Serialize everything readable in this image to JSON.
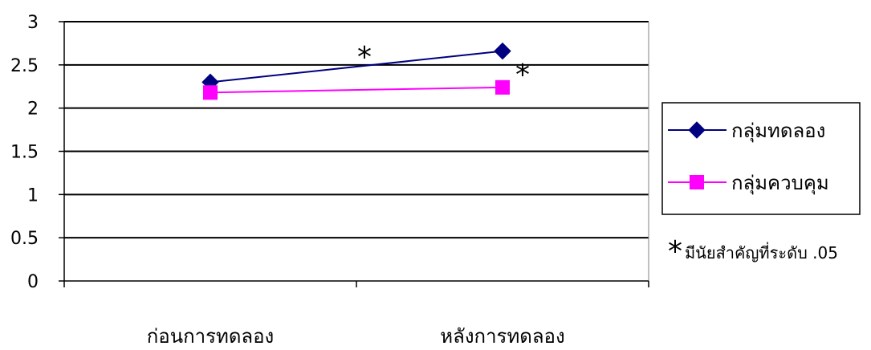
{
  "chart_data": {
    "type": "line",
    "categories": [
      "ก่อนการทดลอง",
      "หลังการทดลอง"
    ],
    "series": [
      {
        "name": "กลุ่มทดลอง",
        "values": [
          2.3,
          2.66
        ],
        "color": "#000080",
        "marker": "diamond"
      },
      {
        "name": "กลุ่มควบคุม",
        "values": [
          2.18,
          2.24
        ],
        "color": "#ff00ff",
        "marker": "square"
      }
    ],
    "ylim": [
      0,
      3
    ],
    "yticks": [
      "0",
      "0.5",
      "1",
      "1.5",
      "2",
      "2.5",
      "3"
    ],
    "grid": true,
    "legend_position": "right",
    "significance_symbol": "*",
    "significance_note": "มีนัยสำคัญที่ระดับ .05"
  }
}
